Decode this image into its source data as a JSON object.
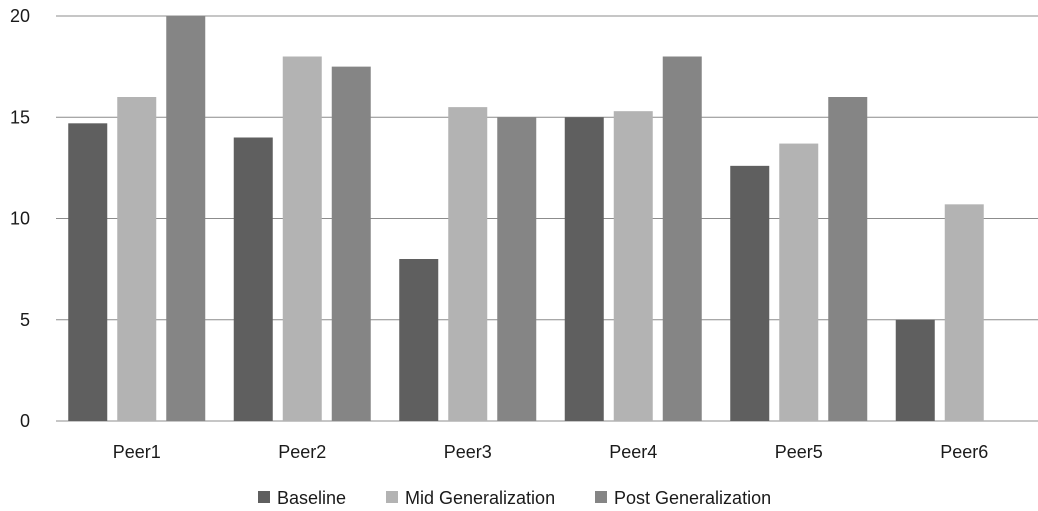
{
  "chart_data": {
    "type": "bar",
    "title": "",
    "xlabel": "",
    "ylabel": "",
    "ylim": [
      0,
      20
    ],
    "yticks": [
      0,
      5,
      10,
      15,
      20
    ],
    "grid": "horizontal",
    "legend_position": "bottom",
    "categories": [
      "Peer1",
      "Peer2",
      "Peer3",
      "Peer4",
      "Peer5",
      "Peer6"
    ],
    "series": [
      {
        "name": "Baseline",
        "color": "#5f5f5f",
        "values": [
          14.7,
          14,
          8,
          15,
          12.6,
          5
        ]
      },
      {
        "name": "Mid Generalization",
        "color": "#b3b3b3",
        "values": [
          16,
          18,
          15.5,
          15.3,
          13.7,
          10.7
        ]
      },
      {
        "name": "Post Generalization",
        "color": "#858585",
        "values": [
          20,
          17.5,
          15,
          18,
          16,
          null
        ]
      }
    ],
    "colors": {
      "gridline": "#8c8c8c",
      "text": "#1a1a1a"
    }
  }
}
